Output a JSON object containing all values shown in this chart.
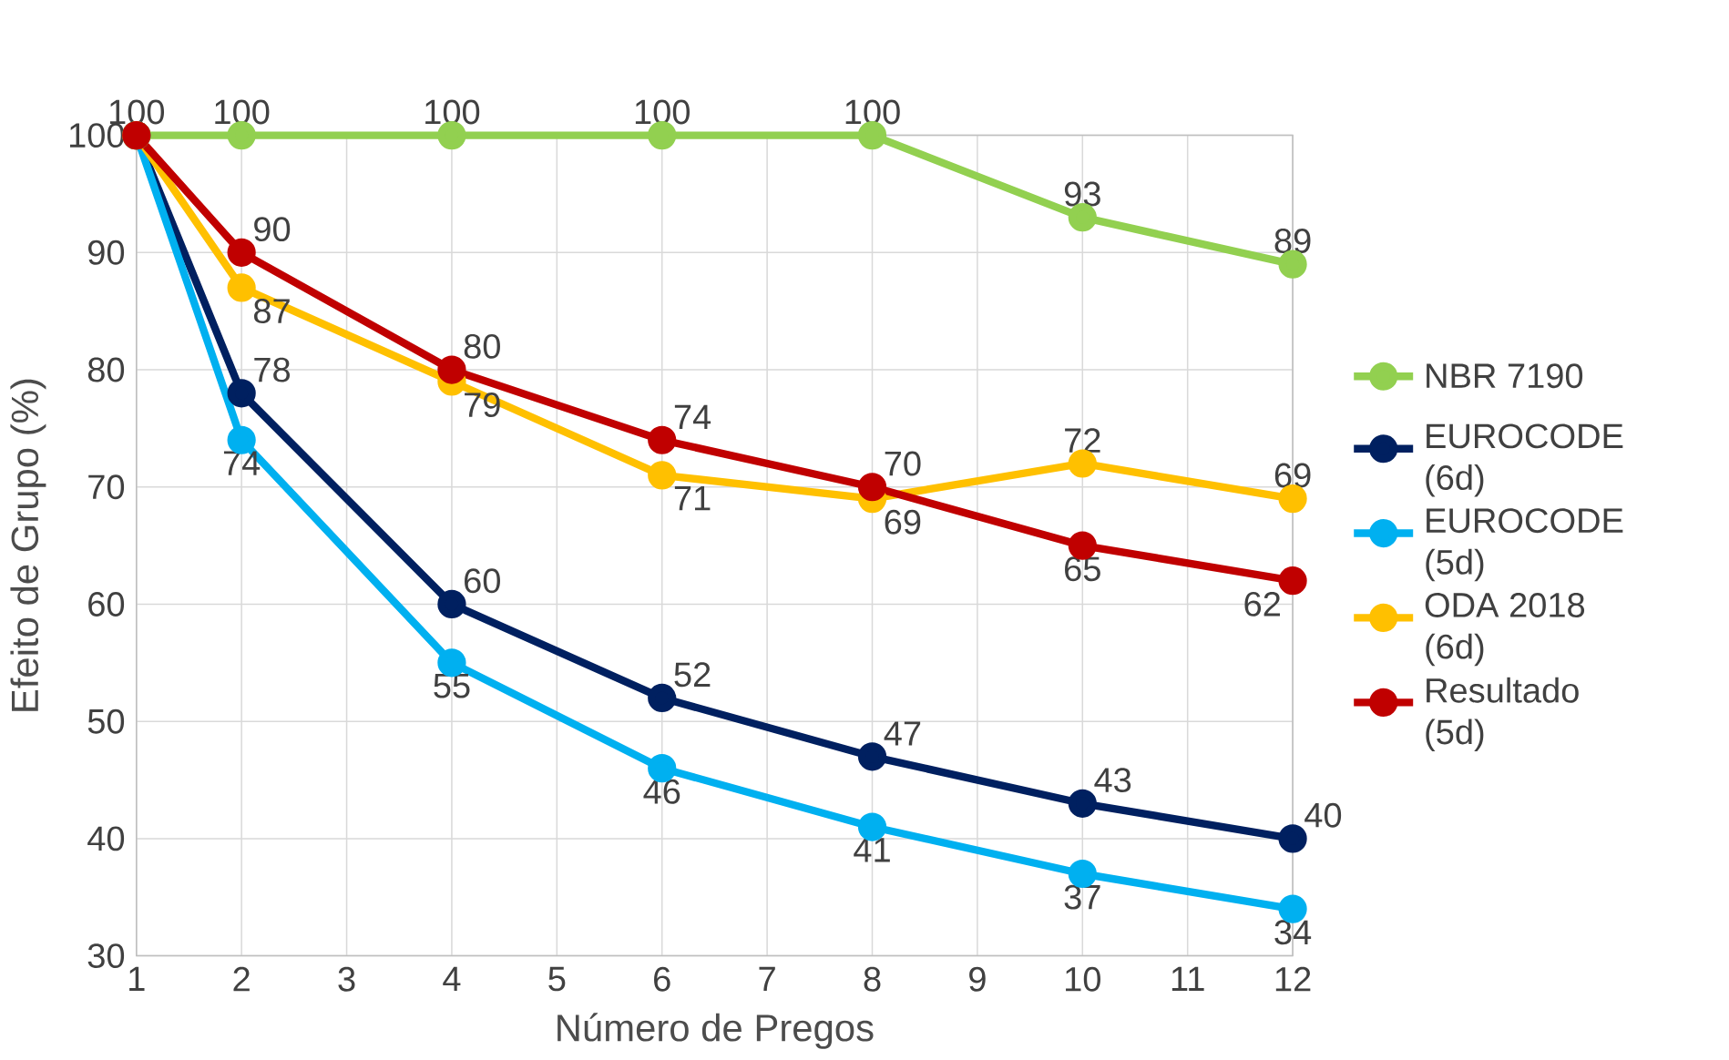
{
  "chart_data": {
    "type": "line",
    "xlabel": "Número de Pregos",
    "ylabel": "Efeito de Grupo (%)",
    "x": [
      1,
      2,
      4,
      6,
      8,
      10,
      12
    ],
    "xlim": [
      1,
      12
    ],
    "xticks": [
      1,
      2,
      3,
      4,
      5,
      6,
      7,
      8,
      9,
      10,
      11,
      12
    ],
    "ylim": [
      30,
      100
    ],
    "yticks": [
      30,
      40,
      50,
      60,
      70,
      80,
      90,
      100
    ],
    "grid": true,
    "legend": "right",
    "marker": "circle",
    "series": [
      {
        "name": "NBR 7190",
        "color": "#92d050",
        "values": [
          100,
          100,
          100,
          100,
          100,
          93,
          89
        ],
        "value_labels": [
          "100",
          "100",
          "100",
          "100",
          "100",
          "93",
          "89"
        ]
      },
      {
        "name": "EUROCODE (6d)",
        "color": "#002060",
        "values": [
          100,
          78,
          60,
          52,
          47,
          43,
          40
        ],
        "value_labels": [
          null,
          "78",
          "60",
          "52",
          "47",
          "43",
          "40"
        ]
      },
      {
        "name": "EUROCODE (5d)",
        "color": "#00b0f0",
        "values": [
          100,
          74,
          55,
          46,
          41,
          37,
          34
        ],
        "value_labels": [
          null,
          "74",
          "55",
          "46",
          "41",
          "37",
          "34"
        ]
      },
      {
        "name": "ODA 2018 (6d)",
        "color": "#ffc000",
        "values": [
          100,
          87,
          79,
          71,
          69,
          72,
          69
        ],
        "value_labels": [
          null,
          "87",
          "79",
          "71",
          "69",
          "72",
          "69"
        ]
      },
      {
        "name": "Resultado (5d)",
        "color": "#c00000",
        "values": [
          100,
          90,
          80,
          74,
          70,
          65,
          62
        ],
        "value_labels": [
          null,
          "90",
          "80",
          "74",
          "70",
          "65",
          "62"
        ]
      }
    ]
  }
}
